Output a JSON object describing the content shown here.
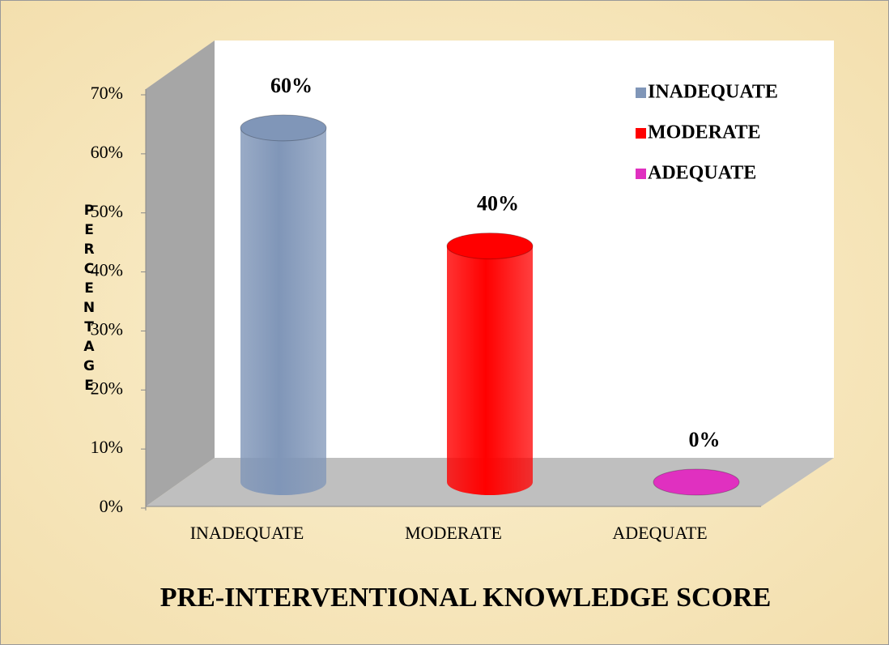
{
  "chart_data": {
    "type": "bar",
    "style": "3d-cylinder",
    "title": "PRE-INTERVENTIONAL KNOWLEDGE SCORE",
    "ylabel": "PERCENTAGE",
    "categories": [
      "INADEQUATE",
      "MODERATE",
      "ADEQUATE"
    ],
    "values": [
      60,
      40,
      0
    ],
    "value_labels": [
      "60%",
      "40%",
      "0%"
    ],
    "colors": [
      "#8096b8",
      "#ff0000",
      "#e030c0"
    ],
    "ylim": [
      0,
      70
    ],
    "yticks": [
      {
        "value": 0,
        "label": "0%"
      },
      {
        "value": 10,
        "label": "10%"
      },
      {
        "value": 20,
        "label": "20%"
      },
      {
        "value": 30,
        "label": "30%"
      },
      {
        "value": 40,
        "label": "40%"
      },
      {
        "value": 50,
        "label": "50%"
      },
      {
        "value": 60,
        "label": "60%"
      },
      {
        "value": 70,
        "label": "70%"
      }
    ],
    "grid": false,
    "legend": true,
    "legend_position": "upper right"
  }
}
